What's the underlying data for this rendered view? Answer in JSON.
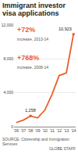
{
  "chart_data": {
    "type": "line",
    "title": "Immigrant investor visa applications",
    "categories": [
      "'06",
      "'07",
      "'08",
      "'09",
      "'10",
      "'11",
      "'12",
      "'13",
      "'14"
    ],
    "values": [
      486,
      776,
      1258,
      1031,
      1955,
      3805,
      6041,
      6346,
      10923
    ],
    "color": "#e8602c",
    "ylim": [
      0,
      12000
    ],
    "yticks": [
      0,
      {
        "value": 4000,
        "label": "4,000"
      },
      {
        "value": 8000,
        "label": "8,000"
      },
      {
        "value": 12000,
        "label": "12,000"
      }
    ],
    "grid": true,
    "point_labels": [
      {
        "x": "'08",
        "label": "1,258"
      },
      {
        "x": "'14",
        "label": "10,923"
      }
    ],
    "annotations": [
      {
        "text": "+72%",
        "note": "increase, 2013-14"
      },
      {
        "text": "+768%",
        "note": "increase, 2008-14"
      }
    ],
    "source": "SOURCE: Citizenship and Immigration Services",
    "credit": "GLOBE STAFF"
  }
}
